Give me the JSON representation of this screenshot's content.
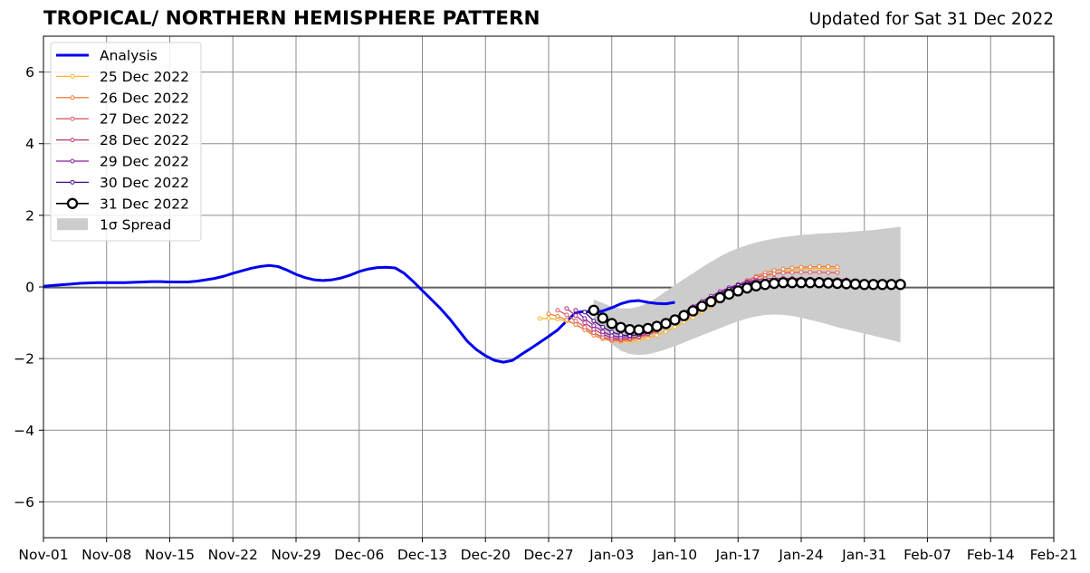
{
  "title": "TROPICAL/ NORTHERN HEMISPHERE PATTERN",
  "subtitle": "Updated for Sat 31 Dec 2022",
  "chart_data": {
    "type": "line",
    "title": "TROPICAL/ NORTHERN HEMISPHERE PATTERN",
    "xlabel": "",
    "ylabel": "",
    "x_type": "date",
    "xlim": [
      "2022-11-01",
      "2023-02-21"
    ],
    "ylim": [
      -7,
      7
    ],
    "grid": true,
    "legend_position": "top-left",
    "x_ticks": [
      {
        "date": "2022-11-01",
        "label": "Nov-01"
      },
      {
        "date": "2022-11-08",
        "label": "Nov-08"
      },
      {
        "date": "2022-11-15",
        "label": "Nov-15"
      },
      {
        "date": "2022-11-22",
        "label": "Nov-22"
      },
      {
        "date": "2022-11-29",
        "label": "Nov-29"
      },
      {
        "date": "2022-12-06",
        "label": "Dec-06"
      },
      {
        "date": "2022-12-13",
        "label": "Dec-13"
      },
      {
        "date": "2022-12-20",
        "label": "Dec-20"
      },
      {
        "date": "2022-12-27",
        "label": "Dec-27"
      },
      {
        "date": "2023-01-03",
        "label": "Jan-03"
      },
      {
        "date": "2023-01-10",
        "label": "Jan-10"
      },
      {
        "date": "2023-01-17",
        "label": "Jan-17"
      },
      {
        "date": "2023-01-24",
        "label": "Jan-24"
      },
      {
        "date": "2023-01-31",
        "label": "Jan-31"
      },
      {
        "date": "2023-02-07",
        "label": "Feb-07"
      },
      {
        "date": "2023-02-14",
        "label": "Feb-14"
      },
      {
        "date": "2023-02-21",
        "label": "Feb-21"
      }
    ],
    "y_ticks": [
      {
        "value": -6,
        "label": "−6"
      },
      {
        "value": -4,
        "label": "−4"
      },
      {
        "value": -2,
        "label": "−2"
      },
      {
        "value": 0,
        "label": "0"
      },
      {
        "value": 2,
        "label": "2"
      },
      {
        "value": 4,
        "label": "4"
      },
      {
        "value": 6,
        "label": "6"
      }
    ],
    "series": [
      {
        "name": "Analysis",
        "color": "#0000ee",
        "style": "line",
        "start_date": "2022-11-01",
        "values": [
          0.02,
          0.04,
          0.06,
          0.08,
          0.1,
          0.11,
          0.12,
          0.12,
          0.12,
          0.12,
          0.13,
          0.14,
          0.15,
          0.15,
          0.14,
          0.14,
          0.14,
          0.16,
          0.2,
          0.24,
          0.3,
          0.38,
          0.45,
          0.52,
          0.57,
          0.6,
          0.57,
          0.47,
          0.35,
          0.26,
          0.2,
          0.18,
          0.2,
          0.25,
          0.33,
          0.43,
          0.5,
          0.54,
          0.55,
          0.53,
          0.38,
          0.15,
          -0.1,
          -0.35,
          -0.6,
          -0.88,
          -1.2,
          -1.52,
          -1.75,
          -1.92,
          -2.05,
          -2.1,
          -2.05,
          -1.88,
          -1.72,
          -1.55,
          -1.38,
          -1.2,
          -0.95,
          -0.72,
          -0.68,
          -0.72,
          -0.67,
          -0.58,
          -0.47,
          -0.4,
          -0.38,
          -0.43,
          -0.46,
          -0.47,
          -0.43
        ]
      },
      {
        "name": "25 Dec 2022",
        "color": "#f9b62c",
        "style": "marker-line",
        "start_date": "2022-12-26",
        "values": [
          -0.88,
          -0.88,
          -0.9,
          -0.95,
          -1.05,
          -1.18,
          -1.3,
          -1.42,
          -1.5,
          -1.53,
          -1.52,
          -1.48,
          -1.42,
          -1.35,
          -1.25,
          -1.12,
          -0.98,
          -0.85,
          -0.7,
          -0.55,
          -0.4,
          -0.25,
          -0.1,
          0.05,
          0.18,
          0.28,
          0.36,
          0.42,
          0.46,
          0.5,
          0.52,
          0.52,
          0.52,
          0.5
        ]
      },
      {
        "name": "26 Dec 2022",
        "color": "#f0803c",
        "style": "marker-line",
        "start_date": "2022-12-27",
        "values": [
          -0.75,
          -0.82,
          -0.92,
          -1.05,
          -1.2,
          -1.35,
          -1.45,
          -1.5,
          -1.5,
          -1.48,
          -1.42,
          -1.35,
          -1.25,
          -1.12,
          -0.98,
          -0.85,
          -0.7,
          -0.55,
          -0.4,
          -0.25,
          -0.1,
          0.05,
          0.18,
          0.3,
          0.4,
          0.46,
          0.5,
          0.53,
          0.55,
          0.56,
          0.57,
          0.57,
          0.56
        ]
      },
      {
        "name": "27 Dec 2022",
        "color": "#dd5e66",
        "style": "marker-line",
        "start_date": "2022-12-28",
        "values": [
          -0.65,
          -0.78,
          -0.95,
          -1.12,
          -1.28,
          -1.4,
          -1.47,
          -1.48,
          -1.45,
          -1.4,
          -1.32,
          -1.22,
          -1.1,
          -0.96,
          -0.82,
          -0.68,
          -0.53,
          -0.38,
          -0.23,
          -0.08,
          0.06,
          0.18,
          0.27,
          0.33,
          0.37,
          0.39,
          0.4,
          0.41,
          0.41,
          0.41,
          0.4,
          0.4
        ]
      },
      {
        "name": "28 Dec 2022",
        "color": "#b5367a",
        "style": "marker-line",
        "start_date": "2022-12-29",
        "values": [
          -0.6,
          -0.8,
          -1.0,
          -1.18,
          -1.32,
          -1.42,
          -1.45,
          -1.43,
          -1.38,
          -1.3,
          -1.2,
          -1.08,
          -0.95,
          -0.8,
          -0.65,
          -0.5,
          -0.35,
          -0.2,
          -0.06,
          0.06,
          0.15,
          0.2,
          0.23,
          0.24,
          0.24,
          0.24,
          0.23,
          0.22,
          0.22,
          0.21,
          0.21,
          0.2
        ]
      },
      {
        "name": "29 Dec 2022",
        "color": "#8a1d9e",
        "style": "marker-line",
        "start_date": "2022-12-30",
        "values": [
          -0.65,
          -0.88,
          -1.08,
          -1.25,
          -1.36,
          -1.4,
          -1.38,
          -1.32,
          -1.23,
          -1.12,
          -0.99,
          -0.85,
          -0.7,
          -0.55,
          -0.4,
          -0.26,
          -0.13,
          -0.02,
          0.07,
          0.13,
          0.16,
          0.17,
          0.17,
          0.17,
          0.16,
          0.16,
          0.15,
          0.15,
          0.14,
          0.14,
          0.14,
          0.13
        ]
      },
      {
        "name": "30 Dec 2022",
        "color": "#4b0d8c",
        "style": "marker-line",
        "start_date": "2022-12-31",
        "values": [
          -0.7,
          -0.95,
          -1.12,
          -1.26,
          -1.34,
          -1.36,
          -1.33,
          -1.26,
          -1.16,
          -1.04,
          -0.9,
          -0.75,
          -0.6,
          -0.45,
          -0.31,
          -0.18,
          -0.06,
          0.04,
          0.1,
          0.13,
          0.14,
          0.14,
          0.13,
          0.12,
          0.11,
          0.1,
          0.1,
          0.09,
          0.08,
          0.08,
          0.07,
          0.07
        ]
      },
      {
        "name": "31 Dec 2022",
        "color": "#000000",
        "style": "circle-line",
        "start_date": "2023-01-01",
        "values": [
          -0.65,
          -0.87,
          -1.02,
          -1.13,
          -1.19,
          -1.2,
          -1.16,
          -1.1,
          -1.02,
          -0.92,
          -0.8,
          -0.67,
          -0.54,
          -0.41,
          -0.3,
          -0.2,
          -0.11,
          -0.03,
          0.03,
          0.07,
          0.1,
          0.12,
          0.12,
          0.12,
          0.12,
          0.12,
          0.11,
          0.1,
          0.09,
          0.08,
          0.07,
          0.07,
          0.07,
          0.07,
          0.07
        ]
      },
      {
        "name": "1σ Spread",
        "color": "#cccccc",
        "style": "band",
        "start_date": "2023-01-01",
        "upper": [
          -0.35,
          -0.45,
          -0.55,
          -0.6,
          -0.6,
          -0.55,
          -0.45,
          -0.3,
          -0.12,
          0.05,
          0.22,
          0.38,
          0.55,
          0.7,
          0.85,
          0.98,
          1.08,
          1.17,
          1.24,
          1.3,
          1.35,
          1.39,
          1.42,
          1.45,
          1.47,
          1.49,
          1.5,
          1.52,
          1.53,
          1.55,
          1.57,
          1.59,
          1.62,
          1.65,
          1.68
        ],
        "lower": [
          -0.95,
          -1.3,
          -1.6,
          -1.78,
          -1.87,
          -1.9,
          -1.88,
          -1.82,
          -1.74,
          -1.65,
          -1.55,
          -1.45,
          -1.35,
          -1.25,
          -1.15,
          -1.05,
          -0.96,
          -0.88,
          -0.82,
          -0.78,
          -0.77,
          -0.78,
          -0.81,
          -0.86,
          -0.92,
          -0.98,
          -1.05,
          -1.12,
          -1.18,
          -1.24,
          -1.3,
          -1.36,
          -1.42,
          -1.48,
          -1.55
        ]
      }
    ]
  },
  "legend": {
    "items": [
      "Analysis",
      "25 Dec 2022",
      "26 Dec 2022",
      "27 Dec 2022",
      "28 Dec 2022",
      "29 Dec 2022",
      "30 Dec 2022",
      "31 Dec 2022",
      "1σ Spread"
    ]
  }
}
